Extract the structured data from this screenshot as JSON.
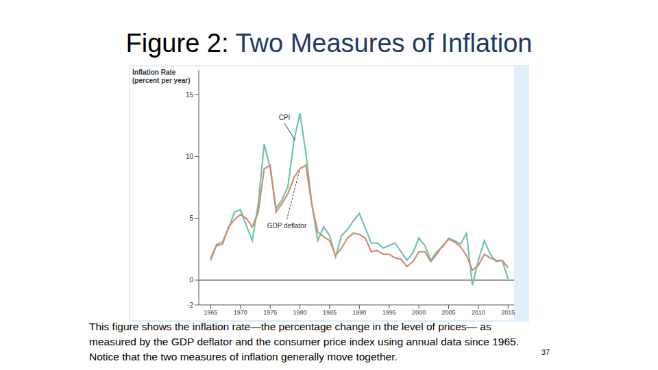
{
  "chart_data": {
    "type": "line",
    "title": "Figure 2: Two Measures of Inflation",
    "y_label": "Inflation Rate (percent per year)",
    "x": [
      1965,
      1966,
      1967,
      1968,
      1969,
      1970,
      1971,
      1972,
      1973,
      1974,
      1975,
      1976,
      1977,
      1978,
      1979,
      1980,
      1981,
      1982,
      1983,
      1984,
      1985,
      1986,
      1987,
      1988,
      1989,
      1990,
      1991,
      1992,
      1993,
      1994,
      1995,
      1996,
      1997,
      1998,
      1999,
      2000,
      2001,
      2002,
      2003,
      2004,
      2005,
      2006,
      2007,
      2008,
      2009,
      2010,
      2011,
      2012,
      2013,
      2014,
      2015
    ],
    "xlim": [
      1963,
      2016
    ],
    "xticks": [
      1965,
      1970,
      1975,
      1980,
      1985,
      1990,
      1995,
      2000,
      2005,
      2010,
      2015
    ],
    "ylim": [
      -2,
      17
    ],
    "yticks": [
      -2,
      0,
      5,
      10,
      15
    ],
    "series": [
      {
        "name": "CPI",
        "color": "#6cc3ad",
        "values": [
          1.6,
          2.9,
          3.1,
          4.2,
          5.5,
          5.7,
          4.4,
          3.2,
          6.2,
          11.0,
          9.1,
          5.8,
          6.5,
          7.6,
          11.3,
          13.5,
          10.3,
          6.2,
          3.2,
          4.3,
          3.6,
          1.9,
          3.6,
          4.1,
          4.8,
          5.4,
          4.2,
          3.0,
          3.0,
          2.6,
          2.8,
          3.0,
          2.3,
          1.6,
          2.2,
          3.4,
          2.8,
          1.6,
          2.3,
          2.7,
          3.4,
          3.2,
          2.9,
          3.8,
          -0.4,
          1.6,
          3.2,
          2.1,
          1.5,
          1.6,
          0.1
        ]
      },
      {
        "name": "GDP deflator",
        "color": "#d58a6e",
        "values": [
          1.8,
          2.8,
          2.9,
          4.3,
          4.9,
          5.3,
          5.0,
          4.3,
          5.5,
          9.0,
          9.3,
          5.5,
          6.2,
          7.0,
          8.3,
          9.0,
          9.3,
          6.1,
          3.9,
          3.5,
          3.2,
          2.0,
          2.6,
          3.4,
          3.8,
          3.7,
          3.4,
          2.3,
          2.4,
          2.1,
          2.1,
          1.8,
          1.7,
          1.1,
          1.5,
          2.3,
          2.3,
          1.5,
          2.1,
          2.8,
          3.3,
          3.1,
          2.7,
          2.0,
          0.8,
          1.2,
          2.1,
          1.8,
          1.6,
          1.6,
          1.0
        ]
      }
    ],
    "reference_lines": [
      0
    ],
    "annotations": [
      {
        "text": "CPI",
        "x": 1977.4,
        "y": 12.7,
        "target": [
          1979.2,
          11.3
        ],
        "line_style": "solid"
      },
      {
        "text": "GDP deflator",
        "x": 1977.8,
        "y": 4.9,
        "target": [
          1979.9,
          8.8
        ],
        "line_style": "dashed"
      }
    ],
    "caption": [
      "This figure shows the inflation rate—the percentage change in the level of prices— as",
      "measured by the GDP deflator and the consumer price index using annual data since 1965.",
      "Notice that the two measures of inflation generally move together."
    ],
    "page_number": "37"
  }
}
